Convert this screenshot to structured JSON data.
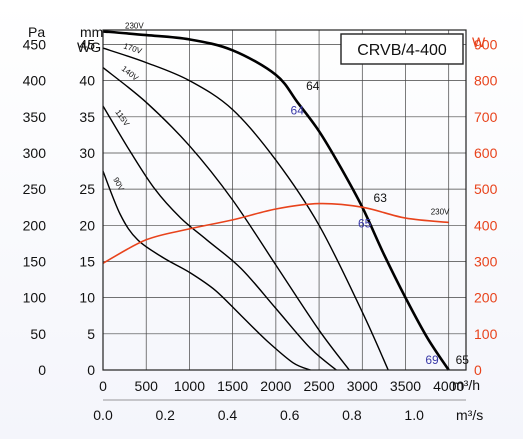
{
  "chart_data": {
    "type": "line",
    "title": "CRVB/4-400",
    "left_axis_pa": {
      "label": "Pa",
      "ticks": [
        0,
        50,
        100,
        150,
        200,
        250,
        300,
        350,
        400,
        450
      ],
      "range": [
        0,
        470
      ]
    },
    "left_axis_mmwg": {
      "label_line1": "mm",
      "label_line2": "WG",
      "ticks": [
        0,
        5,
        10,
        15,
        20,
        25,
        30,
        35,
        40,
        45
      ],
      "range": [
        0,
        47
      ]
    },
    "right_axis_w": {
      "label": "W",
      "ticks": [
        0,
        100,
        200,
        300,
        400,
        500,
        600,
        700,
        800,
        900
      ],
      "range": [
        0,
        940
      ],
      "color": "#e8431c"
    },
    "x_axis_m3h": {
      "unit": "m³/h",
      "ticks": [
        0,
        500,
        1000,
        1500,
        2000,
        2500,
        3000,
        3500,
        4000
      ],
      "range": [
        0,
        4200
      ]
    },
    "x_axis_m3s": {
      "unit": "m³/s",
      "ticks": [
        "0.0",
        "0.2",
        "0.4",
        "0.6",
        "0.8",
        "1.0"
      ],
      "tick_values": [
        0,
        0.2,
        0.4,
        0.6,
        0.8,
        1.0
      ]
    },
    "grid": true,
    "series": [
      {
        "name": "230V",
        "axis": "pressure_mmwg",
        "bold": true,
        "color": "#000000",
        "x": [
          0,
          500,
          1000,
          1500,
          2000,
          2250,
          2500,
          2750,
          3000,
          3250,
          3500,
          3750,
          4000
        ],
        "y": [
          46.8,
          46.3,
          45.7,
          44.2,
          40.8,
          37.0,
          33.0,
          28.0,
          22.5,
          16.0,
          10.0,
          4.5,
          0
        ]
      },
      {
        "name": "170V",
        "axis": "pressure_mmwg",
        "bold": false,
        "color": "#000000",
        "x": [
          0,
          500,
          1000,
          1500,
          2000,
          2500,
          3000,
          3300
        ],
        "y": [
          44.5,
          42.5,
          40.0,
          36.0,
          29.0,
          20.0,
          8.0,
          0
        ]
      },
      {
        "name": "140V",
        "axis": "pressure_mmwg",
        "bold": false,
        "color": "#000000",
        "x": [
          0,
          500,
          1000,
          1500,
          2000,
          2500,
          2850
        ],
        "y": [
          41.8,
          37.0,
          31.0,
          23.5,
          14.5,
          5.5,
          0
        ]
      },
      {
        "name": "115V",
        "axis": "pressure_mmwg",
        "bold": false,
        "color": "#000000",
        "x": [
          0,
          300,
          600,
          900,
          1200,
          1600,
          2000,
          2400,
          2700
        ],
        "y": [
          36.5,
          30.5,
          25.0,
          21.0,
          18.0,
          14.0,
          8.5,
          3.0,
          0
        ]
      },
      {
        "name": "90V",
        "axis": "pressure_mmwg",
        "bold": false,
        "color": "#000000",
        "x": [
          0,
          200,
          400,
          700,
          1000,
          1300,
          1600,
          1900,
          2200,
          2400
        ],
        "y": [
          27.5,
          21.5,
          18.0,
          15.5,
          13.5,
          11.0,
          7.5,
          4.0,
          1.0,
          0
        ]
      },
      {
        "name": "230V",
        "axis": "power_w",
        "bold": false,
        "color": "#e8431c",
        "x": [
          0,
          500,
          1000,
          1500,
          2000,
          2500,
          3000,
          3500,
          4000
        ],
        "y": [
          295,
          360,
          390,
          415,
          445,
          460,
          450,
          420,
          408
        ]
      }
    ],
    "annotations": [
      {
        "text": "64",
        "color": "#111111",
        "x": 2350,
        "y_mmwg": 38.7
      },
      {
        "text": "64",
        "color": "#3a3aa8",
        "x": 2170,
        "y_mmwg": 35.3
      },
      {
        "text": "63",
        "color": "#111111",
        "x": 3130,
        "y_mmwg": 23.2
      },
      {
        "text": "65",
        "color": "#3a3aa8",
        "x": 2950,
        "y_mmwg": 19.7
      },
      {
        "text": "69",
        "color": "#3a3aa8",
        "x": 3730,
        "y_mmwg": 0.8
      },
      {
        "text": "65",
        "color": "#111111",
        "x": 4080,
        "y_mmwg": 0.8
      }
    ]
  }
}
